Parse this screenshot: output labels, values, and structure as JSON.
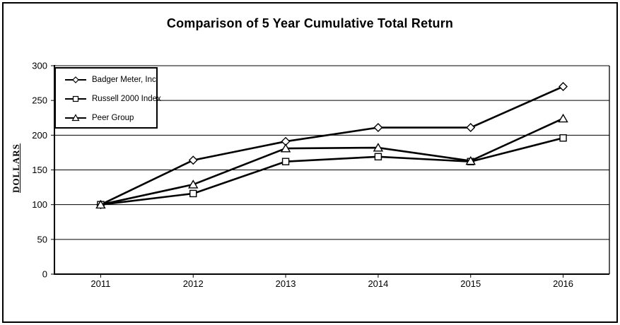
{
  "chart_data": {
    "type": "line",
    "title": "Comparison of 5 Year Cumulative Total Return",
    "xlabel": "",
    "ylabel": "DOLLARS",
    "categories": [
      "2011",
      "2012",
      "2013",
      "2014",
      "2015",
      "2016"
    ],
    "series": [
      {
        "name": "Badger Meter, Inc.",
        "marker": "diamond",
        "values": [
          100,
          164,
          191,
          211,
          211,
          270
        ]
      },
      {
        "name": "Russell 2000 Index",
        "marker": "square",
        "values": [
          100,
          116,
          162,
          169,
          162,
          196
        ]
      },
      {
        "name": "Peer Group",
        "marker": "triangle",
        "values": [
          100,
          129,
          181,
          182,
          163,
          224
        ]
      }
    ],
    "ylim": [
      0,
      300
    ],
    "yticks": [
      0,
      50,
      100,
      150,
      200,
      250,
      300
    ],
    "grid": true,
    "legend_position": "top-left-inside",
    "line_color": "#000000",
    "marker_fill": "#ffffff",
    "marker_stroke": "#000000",
    "background": "#ffffff"
  }
}
